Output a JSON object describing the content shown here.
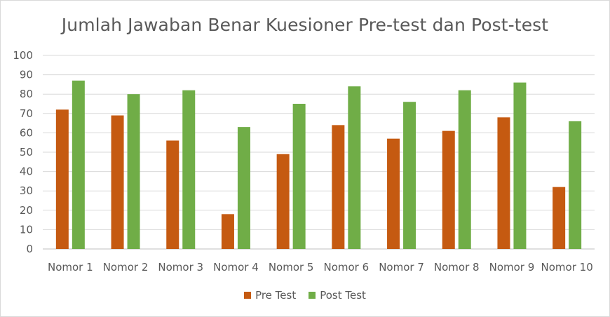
{
  "chart_data": {
    "type": "bar",
    "title": "Jumlah Jawaban Benar Kuesioner Pre-test dan Post-test",
    "categories": [
      "Nomor 1",
      "Nomor 2",
      "Nomor 3",
      "Nomor 4",
      "Nomor 5",
      "Nomor 6",
      "Nomor 7",
      "Nomor 8",
      "Nomor 9",
      "Nomor 10"
    ],
    "series": [
      {
        "name": "Pre Test",
        "color": "#c55a11",
        "values": [
          72,
          69,
          56,
          18,
          49,
          64,
          57,
          61,
          68,
          32
        ]
      },
      {
        "name": "Post Test",
        "color": "#70ad47",
        "values": [
          87,
          80,
          82,
          63,
          75,
          84,
          76,
          82,
          86,
          66
        ]
      }
    ],
    "ylim": [
      0,
      100
    ],
    "yticks": [
      0,
      10,
      20,
      30,
      40,
      50,
      60,
      70,
      80,
      90,
      100
    ],
    "grid": true,
    "legend": "bottom",
    "xlabel": "",
    "ylabel": ""
  }
}
